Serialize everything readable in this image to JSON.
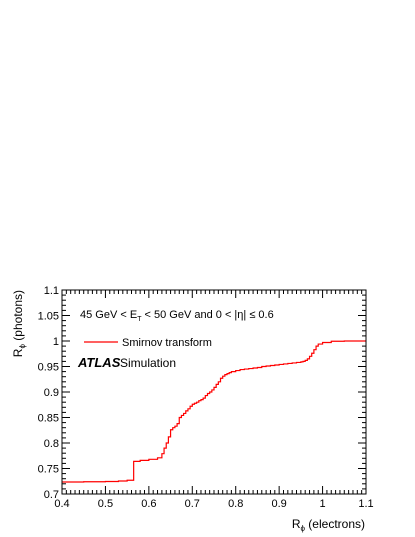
{
  "chart_data": {
    "type": "line",
    "xlabel": "R",
    "xlabel_sub": "ϕ",
    "xlabel_suffix": " (electrons)",
    "ylabel": "R",
    "ylabel_sub": "ϕ",
    "ylabel_suffix": " (photons)",
    "xlim": [
      0.4,
      1.1
    ],
    "ylim": [
      0.7,
      1.1
    ],
    "xticks": [
      "0.4",
      "0.5",
      "0.6",
      "0.7",
      "0.8",
      "0.9",
      "1",
      "1.1"
    ],
    "yticks": [
      "0.7",
      "0.75",
      "0.8",
      "0.85",
      "0.9",
      "0.95",
      "1",
      "1.05",
      "1.1"
    ],
    "legend": {
      "placement": "top-left"
    },
    "annotations": {
      "selection_a": "45 GeV < E",
      "selection_sub": "T",
      "selection_b": " < 50 GeV and 0 < |η| ≤ 0.6",
      "atlas": "ATLAS",
      "simulation": "Simulation"
    },
    "series": [
      {
        "name": "Smirnov transform",
        "color": "#ff0000",
        "x": [
          0.4,
          0.45,
          0.5,
          0.53,
          0.55,
          0.565,
          0.565,
          0.58,
          0.6,
          0.62,
          0.63,
          0.635,
          0.64,
          0.645,
          0.65,
          0.655,
          0.66,
          0.665,
          0.67,
          0.675,
          0.68,
          0.685,
          0.69,
          0.695,
          0.7,
          0.705,
          0.71,
          0.715,
          0.72,
          0.725,
          0.73,
          0.735,
          0.74,
          0.745,
          0.75,
          0.755,
          0.76,
          0.765,
          0.77,
          0.775,
          0.78,
          0.785,
          0.79,
          0.8,
          0.81,
          0.82,
          0.83,
          0.84,
          0.85,
          0.86,
          0.87,
          0.88,
          0.89,
          0.9,
          0.91,
          0.92,
          0.93,
          0.94,
          0.95,
          0.955,
          0.96,
          0.965,
          0.97,
          0.975,
          0.98,
          0.985,
          0.99,
          1.0,
          1.02,
          1.05,
          1.1
        ],
        "y": [
          0.7235,
          0.724,
          0.7245,
          0.7255,
          0.727,
          0.729,
          0.764,
          0.766,
          0.768,
          0.771,
          0.779,
          0.79,
          0.8,
          0.812,
          0.826,
          0.83,
          0.833,
          0.838,
          0.85,
          0.854,
          0.858,
          0.863,
          0.867,
          0.872,
          0.876,
          0.878,
          0.88,
          0.883,
          0.885,
          0.888,
          0.893,
          0.897,
          0.9,
          0.904,
          0.909,
          0.915,
          0.92,
          0.927,
          0.931,
          0.934,
          0.936,
          0.938,
          0.94,
          0.942,
          0.944,
          0.945,
          0.946,
          0.947,
          0.948,
          0.95,
          0.951,
          0.952,
          0.953,
          0.954,
          0.955,
          0.956,
          0.957,
          0.958,
          0.959,
          0.96,
          0.962,
          0.965,
          0.97,
          0.976,
          0.983,
          0.99,
          0.994,
          0.997,
          0.9995,
          1.0,
          1.0
        ]
      }
    ]
  }
}
